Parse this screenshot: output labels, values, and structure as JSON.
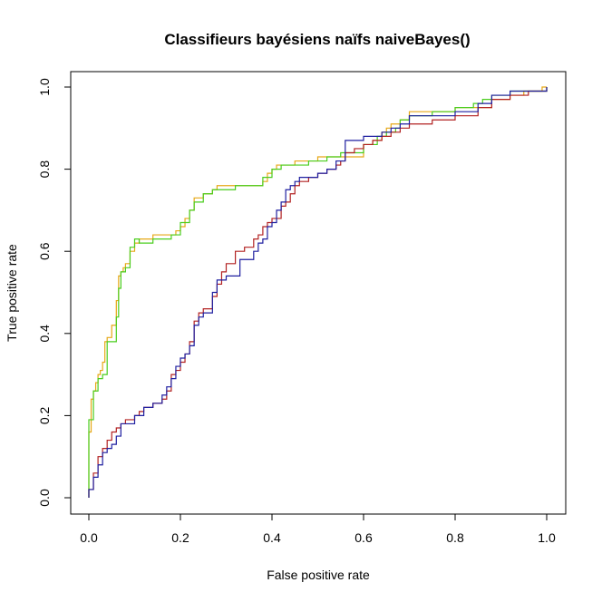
{
  "chart_data": {
    "type": "line",
    "title": "Classifieurs bayésiens naïfs naiveBayes()",
    "xlabel": "False positive rate",
    "ylabel": "True positive rate",
    "xlim": [
      0,
      1
    ],
    "ylim": [
      0,
      1
    ],
    "x_ticks": [
      "0.0",
      "0.2",
      "0.4",
      "0.6",
      "0.8",
      "1.0"
    ],
    "y_ticks": [
      "0.0",
      "0.2",
      "0.4",
      "0.6",
      "0.8",
      "1.0"
    ],
    "grid": false,
    "legend": false,
    "series": [
      {
        "color": "#E6A817",
        "step": true,
        "x": [
          0.0,
          0.0,
          0.005,
          0.01,
          0.015,
          0.02,
          0.025,
          0.03,
          0.035,
          0.04,
          0.05,
          0.06,
          0.065,
          0.07,
          0.075,
          0.08,
          0.09,
          0.1,
          0.11,
          0.12,
          0.14,
          0.16,
          0.19,
          0.2,
          0.21,
          0.22,
          0.23,
          0.25,
          0.26,
          0.27,
          0.28,
          0.3,
          0.33,
          0.36,
          0.38,
          0.39,
          0.4,
          0.41,
          0.42,
          0.45,
          0.5,
          0.55,
          0.6,
          0.62,
          0.64,
          0.65,
          0.66,
          0.67,
          0.68,
          0.7,
          0.74,
          0.8,
          0.84,
          0.88,
          0.92,
          0.95,
          0.99,
          1.0
        ],
        "y": [
          0.0,
          0.16,
          0.24,
          0.26,
          0.28,
          0.3,
          0.31,
          0.33,
          0.38,
          0.39,
          0.42,
          0.48,
          0.54,
          0.55,
          0.56,
          0.57,
          0.6,
          0.62,
          0.63,
          0.63,
          0.64,
          0.64,
          0.65,
          0.66,
          0.68,
          0.7,
          0.73,
          0.74,
          0.74,
          0.75,
          0.76,
          0.76,
          0.76,
          0.76,
          0.77,
          0.79,
          0.8,
          0.81,
          0.81,
          0.82,
          0.83,
          0.83,
          0.86,
          0.87,
          0.89,
          0.9,
          0.91,
          0.91,
          0.92,
          0.94,
          0.94,
          0.95,
          0.95,
          0.97,
          0.98,
          0.99,
          1.0,
          1.0
        ]
      },
      {
        "color": "#4ACD1E",
        "step": true,
        "x": [
          0.0,
          0.0,
          0.01,
          0.02,
          0.03,
          0.04,
          0.05,
          0.06,
          0.065,
          0.07,
          0.08,
          0.09,
          0.1,
          0.11,
          0.12,
          0.14,
          0.18,
          0.2,
          0.22,
          0.23,
          0.25,
          0.27,
          0.32,
          0.36,
          0.38,
          0.4,
          0.42,
          0.48,
          0.52,
          0.55,
          0.58,
          0.6,
          0.63,
          0.65,
          0.67,
          0.68,
          0.7,
          0.75,
          0.8,
          0.84,
          0.86,
          0.88,
          0.92,
          0.96,
          1.0
        ],
        "y": [
          0.0,
          0.19,
          0.26,
          0.29,
          0.3,
          0.38,
          0.38,
          0.44,
          0.51,
          0.55,
          0.56,
          0.61,
          0.63,
          0.62,
          0.62,
          0.63,
          0.64,
          0.67,
          0.7,
          0.72,
          0.74,
          0.75,
          0.76,
          0.76,
          0.78,
          0.8,
          0.81,
          0.82,
          0.83,
          0.84,
          0.84,
          0.86,
          0.88,
          0.89,
          0.9,
          0.92,
          0.93,
          0.94,
          0.95,
          0.96,
          0.97,
          0.98,
          0.99,
          0.99,
          1.0
        ]
      },
      {
        "color": "#B22222",
        "step": true,
        "x": [
          0.0,
          0.0,
          0.01,
          0.02,
          0.03,
          0.04,
          0.05,
          0.06,
          0.07,
          0.08,
          0.1,
          0.11,
          0.12,
          0.14,
          0.16,
          0.17,
          0.18,
          0.19,
          0.2,
          0.21,
          0.22,
          0.23,
          0.24,
          0.25,
          0.27,
          0.28,
          0.29,
          0.3,
          0.32,
          0.34,
          0.36,
          0.37,
          0.38,
          0.39,
          0.4,
          0.41,
          0.42,
          0.43,
          0.44,
          0.45,
          0.46,
          0.48,
          0.5,
          0.52,
          0.54,
          0.55,
          0.56,
          0.58,
          0.6,
          0.62,
          0.64,
          0.66,
          0.68,
          0.7,
          0.75,
          0.8,
          0.85,
          0.88,
          0.92,
          0.96,
          1.0
        ],
        "y": [
          0.0,
          0.02,
          0.06,
          0.1,
          0.12,
          0.14,
          0.16,
          0.17,
          0.18,
          0.19,
          0.2,
          0.21,
          0.22,
          0.23,
          0.24,
          0.26,
          0.3,
          0.31,
          0.33,
          0.35,
          0.38,
          0.43,
          0.45,
          0.46,
          0.49,
          0.52,
          0.55,
          0.57,
          0.6,
          0.61,
          0.63,
          0.64,
          0.66,
          0.67,
          0.68,
          0.68,
          0.71,
          0.72,
          0.74,
          0.76,
          0.77,
          0.78,
          0.79,
          0.8,
          0.81,
          0.82,
          0.84,
          0.85,
          0.86,
          0.87,
          0.88,
          0.89,
          0.9,
          0.91,
          0.92,
          0.93,
          0.95,
          0.97,
          0.98,
          0.99,
          1.0
        ]
      },
      {
        "color": "#1F1FA0",
        "step": true,
        "x": [
          0.0,
          0.0,
          0.01,
          0.02,
          0.03,
          0.04,
          0.05,
          0.06,
          0.07,
          0.08,
          0.1,
          0.11,
          0.12,
          0.14,
          0.16,
          0.17,
          0.18,
          0.19,
          0.2,
          0.21,
          0.22,
          0.23,
          0.24,
          0.25,
          0.27,
          0.28,
          0.3,
          0.33,
          0.36,
          0.37,
          0.38,
          0.39,
          0.4,
          0.41,
          0.42,
          0.43,
          0.44,
          0.45,
          0.46,
          0.48,
          0.5,
          0.52,
          0.54,
          0.55,
          0.56,
          0.58,
          0.6,
          0.62,
          0.64,
          0.66,
          0.68,
          0.7,
          0.75,
          0.8,
          0.85,
          0.88,
          0.92,
          0.96,
          1.0
        ],
        "y": [
          0.0,
          0.02,
          0.05,
          0.08,
          0.11,
          0.12,
          0.13,
          0.15,
          0.18,
          0.18,
          0.2,
          0.2,
          0.22,
          0.23,
          0.25,
          0.27,
          0.29,
          0.32,
          0.34,
          0.35,
          0.37,
          0.42,
          0.44,
          0.45,
          0.5,
          0.53,
          0.54,
          0.58,
          0.6,
          0.62,
          0.63,
          0.66,
          0.67,
          0.7,
          0.72,
          0.75,
          0.76,
          0.77,
          0.78,
          0.78,
          0.79,
          0.8,
          0.82,
          0.82,
          0.87,
          0.87,
          0.88,
          0.88,
          0.89,
          0.9,
          0.91,
          0.93,
          0.93,
          0.94,
          0.96,
          0.98,
          0.99,
          0.99,
          1.0
        ]
      }
    ]
  }
}
